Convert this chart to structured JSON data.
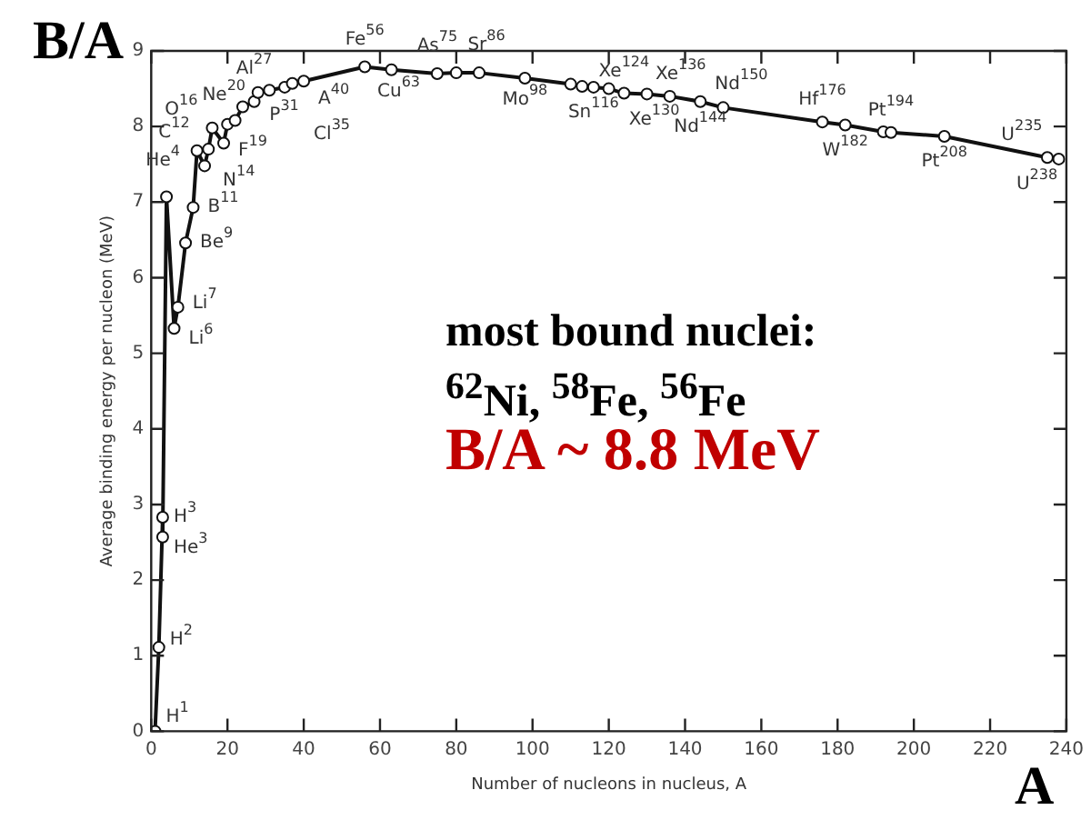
{
  "chart_data": {
    "type": "line",
    "xlabel": "Number of nucleons in nucleus, A",
    "ylabel": "Average binding energy per nucleon (MeV)",
    "x": [
      1,
      2,
      3,
      3,
      4,
      6,
      7,
      9,
      11,
      12,
      14,
      15,
      16,
      19,
      20,
      22,
      24,
      27,
      28,
      31,
      35,
      37,
      40,
      56,
      63,
      75,
      80,
      86,
      98,
      110,
      113,
      116,
      120,
      124,
      130,
      136,
      144,
      150,
      176,
      182,
      192,
      194,
      208,
      235,
      238
    ],
    "series": [
      {
        "color": "#111111",
        "values": [
          0,
          1.11,
          2.83,
          2.57,
          7.07,
          5.33,
          5.61,
          6.46,
          6.93,
          7.68,
          7.48,
          7.7,
          7.98,
          7.78,
          8.03,
          8.08,
          8.26,
          8.33,
          8.45,
          8.48,
          8.52,
          8.57,
          8.6,
          8.79,
          8.75,
          8.7,
          8.71,
          8.71,
          8.64,
          8.56,
          8.53,
          8.52,
          8.5,
          8.44,
          8.43,
          8.4,
          8.33,
          8.25,
          8.06,
          8.02,
          7.93,
          7.92,
          7.87,
          7.59,
          7.57
        ]
      }
    ],
    "xlim": [
      0,
      240
    ],
    "ylim": [
      0,
      9
    ],
    "xticks": [
      0,
      20,
      40,
      60,
      80,
      100,
      120,
      140,
      160,
      180,
      200,
      220,
      240
    ],
    "yticks": [
      0,
      1,
      2,
      3,
      4,
      5,
      6,
      7,
      8,
      9
    ],
    "marker": "circle",
    "grid": false,
    "legend": false,
    "annotations": [
      "B/A",
      "A",
      "most bound nuclei:",
      "$^{62}$Ni, $^{58}$Fe, $^{56}$Fe",
      "B/A ~ 8.8 MeV",
      {
        "text": "H$^{1}$",
        "x": 1,
        "y": 0
      },
      {
        "text": "H$^{2}$",
        "x": 2,
        "y": 1.11
      },
      {
        "text": "H$^{3}$",
        "x": 3,
        "y": 2.83
      },
      {
        "text": "He$^{3}$",
        "x": 3,
        "y": 2.57
      },
      {
        "text": "He$^{4}$",
        "x": 4,
        "y": 7.07
      },
      {
        "text": "Li$^{6}$",
        "x": 6,
        "y": 5.33
      },
      {
        "text": "Li$^{7}$",
        "x": 7,
        "y": 5.61
      },
      {
        "text": "Be$^{9}$",
        "x": 9,
        "y": 6.46
      },
      {
        "text": "B$^{11}$",
        "x": 11,
        "y": 6.93
      },
      {
        "text": "C$^{12}$",
        "x": 12,
        "y": 7.68
      },
      {
        "text": "N$^{14}$",
        "x": 14,
        "y": 7.48
      },
      {
        "text": "O$^{16}$",
        "x": 16,
        "y": 7.98
      },
      {
        "text": "F$^{19}$",
        "x": 19,
        "y": 7.78
      },
      {
        "text": "Ne$^{20}$",
        "x": 20,
        "y": 8.03
      },
      {
        "text": "Al$^{27}$",
        "x": 27,
        "y": 8.33
      },
      {
        "text": "P$^{31}$",
        "x": 31,
        "y": 8.48
      },
      {
        "text": "Cl$^{35}$",
        "x": 35,
        "y": 8.52
      },
      {
        "text": "A$^{40}$",
        "x": 40,
        "y": 8.6
      },
      {
        "text": "Fe$^{56}$",
        "x": 56,
        "y": 8.79
      },
      {
        "text": "Cu$^{63}$",
        "x": 63,
        "y": 8.75
      },
      {
        "text": "As$^{75}$",
        "x": 75,
        "y": 8.7
      },
      {
        "text": "Sr$^{86}$",
        "x": 86,
        "y": 8.71
      },
      {
        "text": "Mo$^{98}$",
        "x": 98,
        "y": 8.64
      },
      {
        "text": "Sn$^{116}$",
        "x": 116,
        "y": 8.52
      },
      {
        "text": "Xe$^{124}$",
        "x": 124,
        "y": 8.44
      },
      {
        "text": "Xe$^{130}$",
        "x": 130,
        "y": 8.43
      },
      {
        "text": "Xe$^{136}$",
        "x": 136,
        "y": 8.4
      },
      {
        "text": "Nd$^{144}$",
        "x": 144,
        "y": 8.33
      },
      {
        "text": "Nd$^{150}$",
        "x": 150,
        "y": 8.25
      },
      {
        "text": "Hf$^{176}$",
        "x": 176,
        "y": 8.06
      },
      {
        "text": "W$^{182}$",
        "x": 182,
        "y": 8.02
      },
      {
        "text": "Pt$^{194}$",
        "x": 194,
        "y": 7.92
      },
      {
        "text": "Pt$^{208}$",
        "x": 208,
        "y": 7.87
      },
      {
        "text": "U$^{235}$",
        "x": 235,
        "y": 7.59
      },
      {
        "text": "U$^{238}$",
        "x": 238,
        "y": 7.57
      }
    ]
  }
}
